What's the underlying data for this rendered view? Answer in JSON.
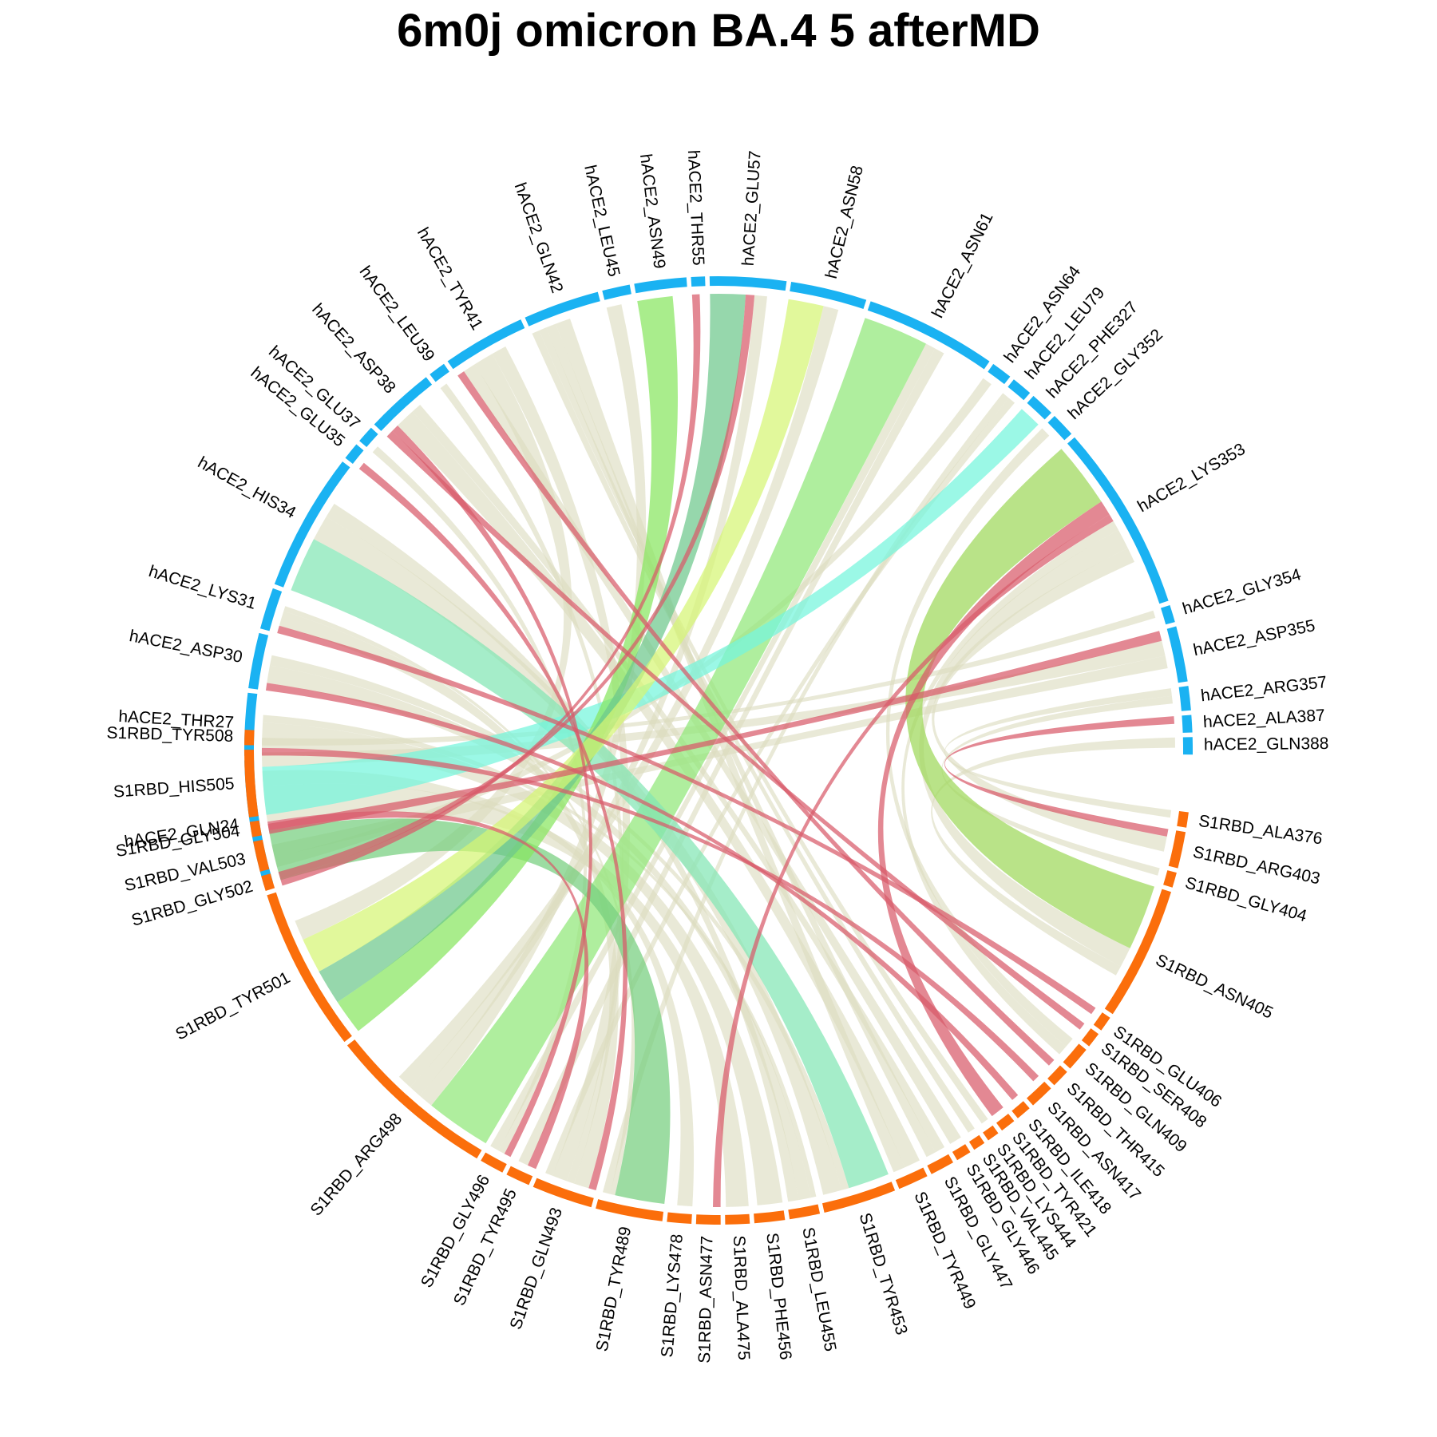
{
  "chart_data": {
    "type": "chord",
    "title": "6m0j omicron BA.4 5 afterMD",
    "colors": {
      "hACE2": "#1ab2f2",
      "S1RBD": "#fb6e0b",
      "default_link": "#dcdcbe",
      "hbond_link": "#d85a6a"
    },
    "sectors": [
      {
        "group": "hACE2",
        "name": "hACE2_GLN24",
        "weight": 3.6
      },
      {
        "group": "hACE2",
        "name": "hACE2_THR27",
        "weight": 1.8
      },
      {
        "group": "hACE2",
        "name": "hACE2_ASP30",
        "weight": 1.6
      },
      {
        "group": "hACE2",
        "name": "hACE2_LYS31",
        "weight": 1.2
      },
      {
        "group": "hACE2",
        "name": "hACE2_HIS34",
        "weight": 4.0
      },
      {
        "group": "hACE2",
        "name": "hACE2_GLU35",
        "weight": 0.5
      },
      {
        "group": "hACE2",
        "name": "hACE2_GLU37",
        "weight": 0.5
      },
      {
        "group": "hACE2",
        "name": "hACE2_ASP38",
        "weight": 2.0
      },
      {
        "group": "hACE2",
        "name": "hACE2_LEU39",
        "weight": 0.5
      },
      {
        "group": "hACE2",
        "name": "hACE2_TYR41",
        "weight": 2.4
      },
      {
        "group": "hACE2",
        "name": "hACE2_GLN42",
        "weight": 2.2
      },
      {
        "group": "hACE2",
        "name": "hACE2_LEU45",
        "weight": 0.8
      },
      {
        "group": "hACE2",
        "name": "hACE2_ASN49",
        "weight": 1.5
      },
      {
        "group": "hACE2",
        "name": "hACE2_THR55",
        "weight": 0.4
      },
      {
        "group": "hACE2",
        "name": "hACE2_GLU57",
        "weight": 2.2
      },
      {
        "group": "hACE2",
        "name": "hACE2_ASN58",
        "weight": 2.2
      },
      {
        "group": "hACE2",
        "name": "hACE2_ASN61",
        "weight": 3.8
      },
      {
        "group": "hACE2",
        "name": "hACE2_ASN64",
        "weight": 0.6
      },
      {
        "group": "hACE2",
        "name": "hACE2_LEU79",
        "weight": 0.6
      },
      {
        "group": "hACE2",
        "name": "hACE2_PHE327",
        "weight": 0.7
      },
      {
        "group": "hACE2",
        "name": "hACE2_GLY352",
        "weight": 0.7
      },
      {
        "group": "hACE2",
        "name": "hACE2_LYS353",
        "weight": 5.4
      },
      {
        "group": "hACE2",
        "name": "hACE2_GLY354",
        "weight": 0.5
      },
      {
        "group": "hACE2",
        "name": "hACE2_ASP355",
        "weight": 1.6
      },
      {
        "group": "hACE2",
        "name": "hACE2_ARG357",
        "weight": 0.7
      },
      {
        "group": "hACE2",
        "name": "hACE2_ALA387",
        "weight": 0.5
      },
      {
        "group": "hACE2",
        "name": "hACE2_GLN388",
        "weight": 0.5
      },
      {
        "group": "S1RBD",
        "name": "S1RBD_ALA376",
        "weight": 0.5
      },
      {
        "group": "S1RBD",
        "name": "S1RBD_ARG403",
        "weight": 1.2
      },
      {
        "group": "S1RBD",
        "name": "S1RBD_GLY404",
        "weight": 0.5
      },
      {
        "group": "S1RBD",
        "name": "S1RBD_ASN405",
        "weight": 4.4
      },
      {
        "group": "S1RBD",
        "name": "S1RBD_GLU406",
        "weight": 0.5
      },
      {
        "group": "S1RBD",
        "name": "S1RBD_SER408",
        "weight": 0.5
      },
      {
        "group": "S1RBD",
        "name": "S1RBD_GLN409",
        "weight": 0.8
      },
      {
        "group": "S1RBD",
        "name": "S1RBD_THR415",
        "weight": 0.6
      },
      {
        "group": "S1RBD",
        "name": "S1RBD_ASN417",
        "weight": 0.8
      },
      {
        "group": "S1RBD",
        "name": "S1RBD_ILE418",
        "weight": 0.5
      },
      {
        "group": "S1RBD",
        "name": "S1RBD_TYR421",
        "weight": 0.5
      },
      {
        "group": "S1RBD",
        "name": "S1RBD_LYS444",
        "weight": 0.4
      },
      {
        "group": "S1RBD",
        "name": "S1RBD_VAL445",
        "weight": 0.4
      },
      {
        "group": "S1RBD",
        "name": "S1RBD_GLY446",
        "weight": 0.5
      },
      {
        "group": "S1RBD",
        "name": "S1RBD_GLY447",
        "weight": 0.8
      },
      {
        "group": "S1RBD",
        "name": "S1RBD_TYR449",
        "weight": 1.0
      },
      {
        "group": "S1RBD",
        "name": "S1RBD_TYR453",
        "weight": 2.4
      },
      {
        "group": "S1RBD",
        "name": "S1RBD_LEU455",
        "weight": 1.0
      },
      {
        "group": "S1RBD",
        "name": "S1RBD_PHE456",
        "weight": 1.0
      },
      {
        "group": "S1RBD",
        "name": "S1RBD_ALA475",
        "weight": 0.8
      },
      {
        "group": "S1RBD",
        "name": "S1RBD_ASN477",
        "weight": 0.8
      },
      {
        "group": "S1RBD",
        "name": "S1RBD_LYS478",
        "weight": 0.8
      },
      {
        "group": "S1RBD",
        "name": "S1RBD_TYR489",
        "weight": 2.2
      },
      {
        "group": "S1RBD",
        "name": "S1RBD_GLN493",
        "weight": 2.0
      },
      {
        "group": "S1RBD",
        "name": "S1RBD_TYR495",
        "weight": 0.8
      },
      {
        "group": "S1RBD",
        "name": "S1RBD_GLY496",
        "weight": 0.8
      },
      {
        "group": "S1RBD",
        "name": "S1RBD_ARG498",
        "weight": 5.6
      },
      {
        "group": "S1RBD",
        "name": "S1RBD_TYR501",
        "weight": 5.4
      },
      {
        "group": "S1RBD",
        "name": "S1RBD_GLY502",
        "weight": 0.5
      },
      {
        "group": "S1RBD",
        "name": "S1RBD_VAL503",
        "weight": 1.0
      },
      {
        "group": "S1RBD",
        "name": "S1RBD_GLY504",
        "weight": 0.5
      },
      {
        "group": "S1RBD",
        "name": "S1RBD_HIS505",
        "weight": 2.2
      },
      {
        "group": "S1RBD",
        "name": "S1RBD_TYR508",
        "weight": 0.5
      }
    ],
    "links": [
      {
        "source": "hACE2_LYS353",
        "target": "S1RBD_ASN405",
        "value": 2.6,
        "color": "#9ed85a"
      },
      {
        "source": "hACE2_ASN61",
        "target": "S1RBD_ARG498",
        "value": 2.6,
        "color": "#90e878"
      },
      {
        "source": "hACE2_HIS34",
        "target": "S1RBD_TYR453",
        "value": 2.2,
        "color": "#82e6b4"
      },
      {
        "source": "hACE2_GLN24",
        "target": "S1RBD_TYR489",
        "value": 2.0,
        "color": "#76cf7e"
      },
      {
        "source": "hACE2_PHE327",
        "target": "S1RBD_HIS505",
        "value": 2.0,
        "color": "#74f5dc"
      },
      {
        "source": "hACE2_ASN49",
        "target": "S1RBD_TYR501",
        "value": 1.4,
        "color": "#88e660"
      },
      {
        "source": "hACE2_GLU57",
        "target": "S1RBD_TYR501",
        "value": 1.4,
        "color": "#6ec88c"
      },
      {
        "source": "hACE2_ASN58",
        "target": "S1RBD_TYR501",
        "value": 1.4,
        "color": "#d6f574"
      },
      {
        "source": "hACE2_GLN24",
        "target": "S1RBD_TYR495",
        "value": 0.35,
        "color": "#d85a6a"
      },
      {
        "source": "hACE2_THR27",
        "target": "S1RBD_ASN417",
        "value": 0.3,
        "color": "#d85a6a"
      },
      {
        "source": "hACE2_ASP30",
        "target": "S1RBD_ILE418",
        "value": 0.3,
        "color": "#d85a6a"
      },
      {
        "source": "hACE2_LYS31",
        "target": "S1RBD_GLU406",
        "value": 0.3,
        "color": "#d85a6a"
      },
      {
        "source": "hACE2_GLU35",
        "target": "S1RBD_GLN493",
        "value": 0.3,
        "color": "#d85a6a"
      },
      {
        "source": "hACE2_ASP38",
        "target": "S1RBD_SER408",
        "value": 0.3,
        "color": "#d85a6a"
      },
      {
        "source": "hACE2_ASP38",
        "target": "S1RBD_GLY496",
        "value": 0.3,
        "color": "#d85a6a"
      },
      {
        "source": "hACE2_TYR41",
        "target": "S1RBD_THR415",
        "value": 0.3,
        "color": "#d85a6a"
      },
      {
        "source": "hACE2_THR55",
        "target": "S1RBD_GLY502",
        "value": 0.3,
        "color": "#d85a6a"
      },
      {
        "source": "hACE2_GLU57",
        "target": "S1RBD_GLY502",
        "value": 0.35,
        "color": "#d85a6a"
      },
      {
        "source": "hACE2_LYS353",
        "target": "S1RBD_TYR421",
        "value": 0.6,
        "color": "#d85a6a"
      },
      {
        "source": "hACE2_LYS353",
        "target": "S1RBD_ASN477",
        "value": 0.3,
        "color": "#d85a6a"
      },
      {
        "source": "hACE2_ASP355",
        "target": "S1RBD_GLY504",
        "value": 0.4,
        "color": "#d85a6a"
      },
      {
        "source": "hACE2_ALA387",
        "target": "S1RBD_ARG403",
        "value": 0.3,
        "color": "#d85a6a"
      },
      {
        "source": "hACE2_GLN24",
        "target": "S1RBD_ALA475",
        "value": 1.4
      },
      {
        "source": "hACE2_GLN24",
        "target": "S1RBD_LYS478",
        "value": 0.6
      },
      {
        "source": "hACE2_THR27",
        "target": "S1RBD_PHE456",
        "value": 1.0
      },
      {
        "source": "hACE2_THR27",
        "target": "S1RBD_LEU455",
        "value": 0.3
      },
      {
        "source": "hACE2_ASP30",
        "target": "S1RBD_LEU455",
        "value": 0.7
      },
      {
        "source": "hACE2_ASP30",
        "target": "S1RBD_TYR453",
        "value": 0.4
      },
      {
        "source": "hACE2_LYS31",
        "target": "S1RBD_GLN493",
        "value": 0.6
      },
      {
        "source": "hACE2_LYS31",
        "target": "S1RBD_TYR489",
        "value": 0.2
      },
      {
        "source": "hACE2_HIS34",
        "target": "S1RBD_TYR453",
        "value": 1.0
      },
      {
        "source": "hACE2_HIS34",
        "target": "S1RBD_LEU455",
        "value": 0.6
      },
      {
        "source": "hACE2_GLU37",
        "target": "S1RBD_GLY496",
        "value": 0.3
      },
      {
        "source": "hACE2_ASP38",
        "target": "S1RBD_TYR449",
        "value": 0.8
      },
      {
        "source": "hACE2_ASP38",
        "target": "S1RBD_GLY447",
        "value": 0.4
      },
      {
        "source": "hACE2_LEU39",
        "target": "S1RBD_GLN493",
        "value": 0.3
      },
      {
        "source": "hACE2_TYR41",
        "target": "S1RBD_GLY446",
        "value": 0.5
      },
      {
        "source": "hACE2_TYR41",
        "target": "S1RBD_TYR501",
        "value": 0.8
      },
      {
        "source": "hACE2_TYR41",
        "target": "S1RBD_GLN493",
        "value": 0.6
      },
      {
        "source": "hACE2_GLN42",
        "target": "S1RBD_VAL445",
        "value": 0.3
      },
      {
        "source": "hACE2_GLN42",
        "target": "S1RBD_LYS444",
        "value": 0.3
      },
      {
        "source": "hACE2_GLN42",
        "target": "S1RBD_GLY447",
        "value": 0.4
      },
      {
        "source": "hACE2_GLN42",
        "target": "S1RBD_TYR449",
        "value": 0.6
      },
      {
        "source": "hACE2_LEU45",
        "target": "S1RBD_ARG498",
        "value": 0.6
      },
      {
        "source": "hACE2_GLU57",
        "target": "S1RBD_ARG498",
        "value": 0.5
      },
      {
        "source": "hACE2_ASN58",
        "target": "S1RBD_ARG498",
        "value": 0.6
      },
      {
        "source": "hACE2_ASN61",
        "target": "S1RBD_GLY496",
        "value": 0.4
      },
      {
        "source": "hACE2_ASN61",
        "target": "S1RBD_TYR495",
        "value": 0.4
      },
      {
        "source": "hACE2_ASN64",
        "target": "S1RBD_VAL503",
        "value": 0.4
      },
      {
        "source": "hACE2_LEU79",
        "target": "S1RBD_TYR489",
        "value": 0.3
      },
      {
        "source": "hACE2_LEU79",
        "target": "S1RBD_GLN493",
        "value": 0.3
      },
      {
        "source": "hACE2_GLY352",
        "target": "S1RBD_GLN409",
        "value": 0.4
      },
      {
        "source": "hACE2_LYS353",
        "target": "S1RBD_GLN409",
        "value": 0.4
      },
      {
        "source": "hACE2_LYS353",
        "target": "S1RBD_ASN405",
        "value": 0.8
      },
      {
        "source": "hACE2_LYS353",
        "target": "S1RBD_ARG403",
        "value": 0.6
      },
      {
        "source": "hACE2_GLY354",
        "target": "S1RBD_TYR508",
        "value": 0.3
      },
      {
        "source": "hACE2_ASP355",
        "target": "S1RBD_HIS505",
        "value": 0.6
      },
      {
        "source": "hACE2_ASP355",
        "target": "S1RBD_VAL503",
        "value": 0.5
      },
      {
        "source": "hACE2_ARG357",
        "target": "S1RBD_ALA376",
        "value": 0.3
      },
      {
        "source": "hACE2_ARG357",
        "target": "S1RBD_GLY404",
        "value": 0.3
      },
      {
        "source": "hACE2_GLN388",
        "target": "S1RBD_ASN405",
        "value": 0.4
      }
    ]
  }
}
